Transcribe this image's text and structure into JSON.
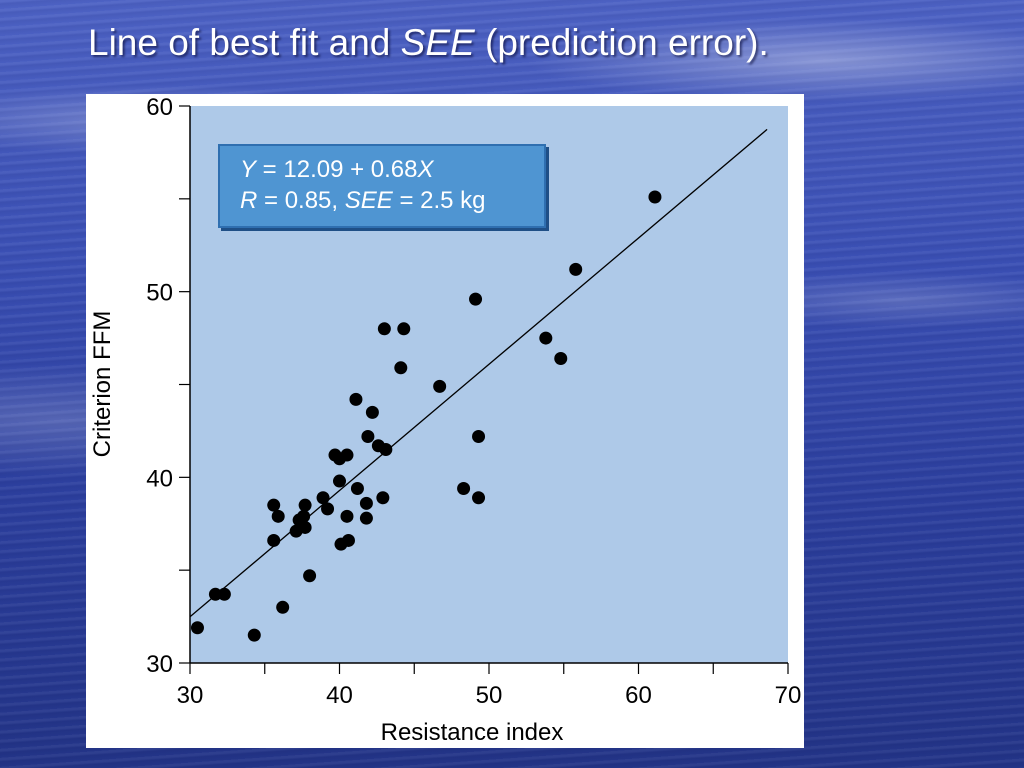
{
  "slide": {
    "title_main": "Line of best fit and ",
    "title_italic": "SEE",
    "title_suffix": " (prediction error)."
  },
  "equation": {
    "line1_var": "Y",
    "line1_text": " = 12.09 + 0.68",
    "line1_var2": "X",
    "line2_var": "R",
    "line2_text": " = 0.85, ",
    "line2_var2": "SEE",
    "line2_text2": " = 2.5 kg"
  },
  "colors": {
    "plot_bg": "#aec9e8",
    "point": "#000000",
    "box_bg": "#4f95d2"
  },
  "chart_data": {
    "type": "scatter",
    "title": "",
    "xlabel": "Resistance index",
    "ylabel": "Criterion FFM",
    "xlim": [
      30,
      70
    ],
    "ylim": [
      30,
      60
    ],
    "xticks": [
      30,
      40,
      50,
      60,
      70
    ],
    "yticks": [
      30,
      40,
      50,
      60
    ],
    "grid": false,
    "regression_line": {
      "intercept": 12.09,
      "slope": 0.68,
      "x_range": [
        30,
        68.6
      ]
    },
    "points": [
      {
        "x": 30.5,
        "y": 31.9
      },
      {
        "x": 31.7,
        "y": 33.7
      },
      {
        "x": 32.3,
        "y": 33.7
      },
      {
        "x": 34.3,
        "y": 31.5
      },
      {
        "x": 35.6,
        "y": 36.6
      },
      {
        "x": 35.6,
        "y": 38.5
      },
      {
        "x": 35.9,
        "y": 37.9
      },
      {
        "x": 36.2,
        "y": 33.0
      },
      {
        "x": 37.1,
        "y": 37.1
      },
      {
        "x": 37.3,
        "y": 37.7
      },
      {
        "x": 37.6,
        "y": 37.9
      },
      {
        "x": 37.7,
        "y": 37.3
      },
      {
        "x": 37.7,
        "y": 38.5
      },
      {
        "x": 38.0,
        "y": 34.7
      },
      {
        "x": 38.9,
        "y": 38.9
      },
      {
        "x": 39.2,
        "y": 38.3
      },
      {
        "x": 39.7,
        "y": 41.2
      },
      {
        "x": 40.0,
        "y": 41.0
      },
      {
        "x": 40.0,
        "y": 39.8
      },
      {
        "x": 40.1,
        "y": 36.4
      },
      {
        "x": 40.5,
        "y": 41.2
      },
      {
        "x": 40.5,
        "y": 37.9
      },
      {
        "x": 40.6,
        "y": 36.6
      },
      {
        "x": 41.1,
        "y": 44.2
      },
      {
        "x": 41.2,
        "y": 39.4
      },
      {
        "x": 41.8,
        "y": 38.6
      },
      {
        "x": 41.8,
        "y": 37.8
      },
      {
        "x": 41.9,
        "y": 42.2
      },
      {
        "x": 42.2,
        "y": 43.5
      },
      {
        "x": 42.6,
        "y": 41.7
      },
      {
        "x": 42.9,
        "y": 38.9
      },
      {
        "x": 43.0,
        "y": 48.0
      },
      {
        "x": 43.1,
        "y": 41.5
      },
      {
        "x": 44.1,
        "y": 45.9
      },
      {
        "x": 44.3,
        "y": 48.0
      },
      {
        "x": 46.7,
        "y": 44.9
      },
      {
        "x": 48.3,
        "y": 39.4
      },
      {
        "x": 49.1,
        "y": 49.6
      },
      {
        "x": 49.3,
        "y": 42.2
      },
      {
        "x": 49.3,
        "y": 38.9
      },
      {
        "x": 53.8,
        "y": 47.5
      },
      {
        "x": 54.8,
        "y": 46.4
      },
      {
        "x": 55.8,
        "y": 51.2
      },
      {
        "x": 61.1,
        "y": 55.1
      }
    ]
  }
}
